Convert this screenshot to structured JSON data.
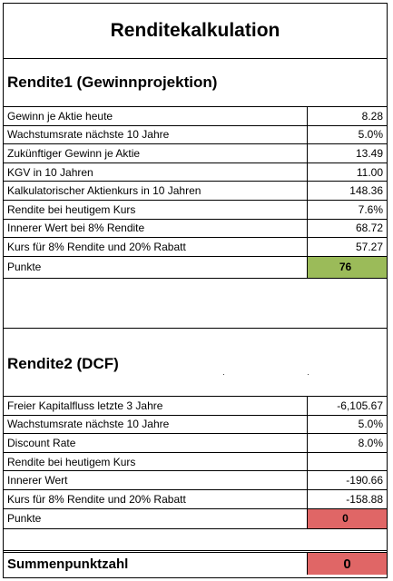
{
  "title": "Renditekalkulation",
  "rendite1": {
    "heading": "Rendite1 (Gewinnprojektion)",
    "rows": [
      {
        "label": "Gewinn je Aktie heute",
        "value": "8.28"
      },
      {
        "label": "Wachstumsrate nächste 10 Jahre",
        "value": "5.0%"
      },
      {
        "label": "Zukünftiger Gewinn je Aktie",
        "value": "13.49"
      },
      {
        "label": "KGV in 10 Jahren",
        "value": "11.00"
      },
      {
        "label": "Kalkulatorischer Aktienkurs in 10 Jahren",
        "value": "148.36"
      },
      {
        "label": "Rendite bei heutigem Kurs",
        "value": "7.6%"
      },
      {
        "label": "Innerer Wert bei 8% Rendite",
        "value": "68.72"
      },
      {
        "label": "Kurs für 8% Rendite und 20% Rabatt",
        "value": "57.27"
      }
    ],
    "points_label": "Punkte",
    "points_value": "76",
    "points_color": "#9bbb59"
  },
  "rendite2": {
    "heading": "Rendite2 (DCF)",
    "rows": [
      {
        "label": "Freier Kapitalfluss letzte 3 Jahre",
        "value": "-6,105.67"
      },
      {
        "label": "Wachstumsrate nächste 10 Jahre",
        "value": "5.0%"
      },
      {
        "label": "Discount Rate",
        "value": "8.0%"
      },
      {
        "label": "Rendite bei heutigem Kurs",
        "value": ""
      },
      {
        "label": "Innerer Wert",
        "value": "-190.66"
      },
      {
        "label": "Kurs für 8% Rendite und 20% Rabatt",
        "value": "-158.88"
      }
    ],
    "points_label": "Punkte",
    "points_value": "0",
    "points_color": "#e06666"
  },
  "summary": {
    "label": "Summenpunktzahl",
    "value": "0",
    "color": "#e06666"
  }
}
